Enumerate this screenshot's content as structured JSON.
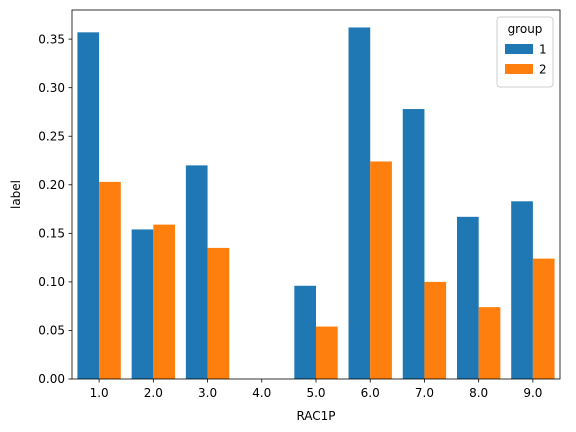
{
  "chart_data": {
    "type": "bar",
    "xlabel": "RAC1P",
    "ylabel": "label",
    "categories": [
      "1.0",
      "2.0",
      "3.0",
      "4.0",
      "5.0",
      "6.0",
      "7.0",
      "8.0",
      "9.0"
    ],
    "series": [
      {
        "name": "1",
        "color": "#1f77b4",
        "values": [
          0.357,
          0.154,
          0.22,
          0.0,
          0.096,
          0.362,
          0.278,
          0.167,
          0.183
        ]
      },
      {
        "name": "2",
        "color": "#ff7f0e",
        "values": [
          0.203,
          0.159,
          0.135,
          0.0,
          0.054,
          0.224,
          0.1,
          0.074,
          0.124
        ]
      }
    ],
    "ylim": [
      0,
      0.38
    ],
    "yticks": [
      "0.00",
      "0.05",
      "0.10",
      "0.15",
      "0.20",
      "0.25",
      "0.30",
      "0.35"
    ],
    "grid": false,
    "legend": {
      "title": "group",
      "placement": "top-right",
      "entries": [
        "1",
        "2"
      ]
    }
  }
}
